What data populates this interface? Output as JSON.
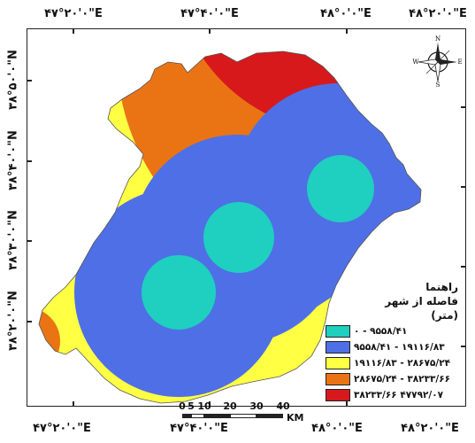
{
  "coordinates": {
    "top": [
      "۴۷°۲۰'۰\"E",
      "۴۷°۴۰'۰\"E",
      "۴۸°۰'۰\"E",
      "۴۸°۲۰'۰\"E"
    ],
    "bottom": [
      "۴۷°۲۰'۰\"E",
      "۴۷°۴۰'۰\"E",
      "۴۸°۰'۰\"E",
      "۴۸°۲۰'۰\"E"
    ],
    "left": [
      "۳۸°۵۰'۰\"N",
      "۳۸°۴۰'۰\"N",
      "۳۸°۳۰'۰\"N",
      "۳۸°۲۰'۰\"N"
    ]
  },
  "legend": {
    "title_lines": [
      "راهنما",
      "فاصله از شهر",
      "(متر)"
    ],
    "classes": [
      {
        "range": "۰ - ۹۵۵۸/۴۱",
        "color": "#1fcfbf"
      },
      {
        "range": "۹۵۵۸/۴۱ - ۱۹۱۱۶/۸۳",
        "color": "#4f6fe6"
      },
      {
        "range": "۱۹۱۱۶/۸۳ - ۲۸۶۷۵/۲۴",
        "color": "#ffff44"
      },
      {
        "range": "۲۸۶۷۵/۲۴ - ۳۸۲۳۳/۶۶",
        "color": "#ea7414"
      },
      {
        "range": "۳۸۲۳۳/۶۶ ۴۷۷۹۲/۰۷",
        "color": "#d7191c"
      }
    ]
  },
  "scale_bar": {
    "labels": [
      "0",
      "5",
      "10",
      "20",
      "30",
      "40"
    ],
    "unit": "KM"
  },
  "north_arrow": {
    "letters": {
      "n": "N",
      "s": "S",
      "e": "E",
      "w": "W"
    }
  }
}
